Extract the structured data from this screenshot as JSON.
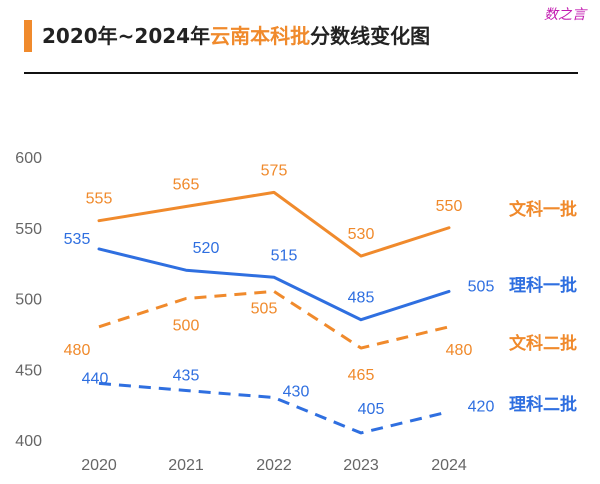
{
  "header": {
    "title_prefix": "2020年~2024年",
    "title_highlight": "云南本科批",
    "title_suffix": "分数线变化图",
    "brand": "数之言"
  },
  "colors": {
    "orange": "#f08a2c",
    "blue": "#2f6fe0",
    "axis": "#666666"
  },
  "chart_data": {
    "type": "line",
    "title": "2020年~2024年云南本科批分数线变化图",
    "x": [
      "2020",
      "2021",
      "2022",
      "2023",
      "2024"
    ],
    "ylim": [
      400,
      600
    ],
    "yticks": [
      "600",
      "550",
      "500",
      "450",
      "400"
    ],
    "series": [
      {
        "name": "文科一批",
        "color": "#f08a2c",
        "dash": false,
        "values": [
          555,
          565,
          575,
          530,
          550
        ]
      },
      {
        "name": "理科一批",
        "color": "#2f6fe0",
        "dash": false,
        "values": [
          535,
          520,
          515,
          485,
          505
        ]
      },
      {
        "name": "文科二批",
        "color": "#f08a2c",
        "dash": true,
        "values": [
          480,
          500,
          505,
          465,
          480
        ]
      },
      {
        "name": "理科二批",
        "color": "#2f6fe0",
        "dash": true,
        "values": [
          440,
          435,
          430,
          405,
          420
        ]
      }
    ]
  }
}
